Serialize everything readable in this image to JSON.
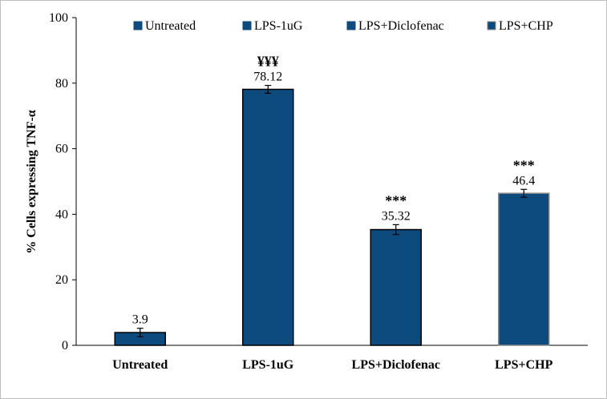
{
  "chart_data": {
    "type": "bar",
    "title": "",
    "xlabel": "",
    "ylabel": "% Cells expressing  TNF-α",
    "ylim": [
      0,
      100
    ],
    "yticks": [
      0,
      20,
      40,
      60,
      80,
      100
    ],
    "grid": false,
    "legend_position": "top",
    "categories": [
      "Untreated",
      "LPS-1uG",
      "LPS+Diclofenac",
      "LPS+CHP"
    ],
    "values": [
      3.9,
      78.12,
      35.32,
      46.4
    ],
    "errors": [
      1.3,
      1.2,
      1.5,
      1.2
    ],
    "data_labels": [
      "3.9",
      "78.12",
      "35.32",
      "46.4"
    ],
    "significance": [
      "",
      "¥¥¥",
      "***",
      "***"
    ],
    "legend": [
      "Untreated",
      "LPS-1uG",
      "LPS+Diclofenac",
      "LPS+CHP"
    ],
    "colors": {
      "bar_fill": "#0d4a7e",
      "bar_stroke": "#000000",
      "last_bar_stroke": "#8a8a8a"
    }
  }
}
